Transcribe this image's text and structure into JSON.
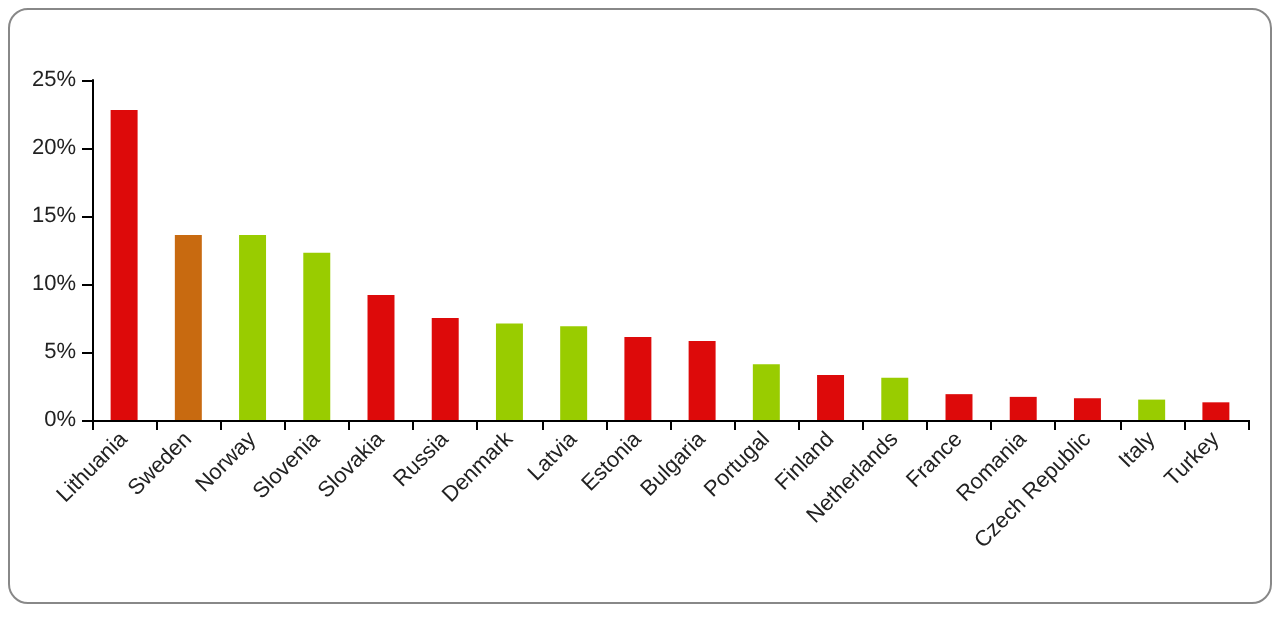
{
  "chart_data": {
    "type": "bar",
    "categories": [
      "Lithuania",
      "Sweden",
      "Norway",
      "Slovenia",
      "Slovakia",
      "Russia",
      "Denmark",
      "Latvia",
      "Estonia",
      "Bulgaria",
      "Portugal",
      "Finland",
      "Netherlands",
      "France",
      "Romania",
      "Czech Republic",
      "Italy",
      "Turkey"
    ],
    "values": [
      22.8,
      13.6,
      13.6,
      12.3,
      9.2,
      7.5,
      7.1,
      6.9,
      6.1,
      5.8,
      4.1,
      3.3,
      3.1,
      1.9,
      1.7,
      1.6,
      1.5,
      1.3
    ],
    "colors": [
      "#dd0a0a",
      "#c86a10",
      "#99cc00",
      "#99cc00",
      "#dd0a0a",
      "#dd0a0a",
      "#99cc00",
      "#99cc00",
      "#dd0a0a",
      "#dd0a0a",
      "#99cc00",
      "#dd0a0a",
      "#99cc00",
      "#dd0a0a",
      "#dd0a0a",
      "#dd0a0a",
      "#99cc00",
      "#dd0a0a"
    ],
    "ylim": [
      0,
      25
    ],
    "yticks": [
      {
        "value": 0,
        "label": "0%"
      },
      {
        "value": 5,
        "label": "5%"
      },
      {
        "value": 10,
        "label": "10%"
      },
      {
        "value": 15,
        "label": "15%"
      },
      {
        "value": 20,
        "label": "20%"
      },
      {
        "value": 25,
        "label": "25%"
      }
    ],
    "tick_labels": true
  }
}
